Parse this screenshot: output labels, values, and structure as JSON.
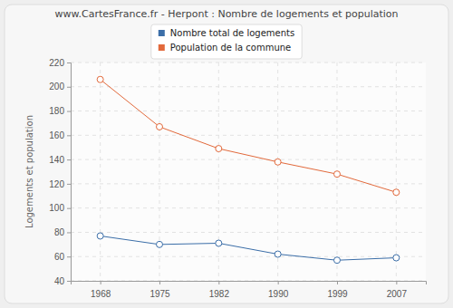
{
  "chart_data": {
    "type": "line",
    "title": "www.CartesFrance.fr - Herpont : Nombre de logements et population",
    "y_label": "Logements et population",
    "categories": [
      "1968",
      "1975",
      "1982",
      "1990",
      "1999",
      "2007"
    ],
    "series": [
      {
        "name": "Nombre total de logements",
        "color": "#3b6ea8",
        "marker": "circle",
        "line_style": "solid",
        "values": [
          77,
          70,
          71,
          62,
          57,
          59
        ]
      },
      {
        "name": "Population de la commune",
        "color": "#e2693b",
        "marker": "circle",
        "line_style": "solid",
        "values": [
          206,
          167,
          149,
          138,
          128,
          113
        ]
      }
    ],
    "ylim": [
      40,
      220
    ],
    "yticks": [
      40,
      60,
      80,
      100,
      120,
      140,
      160,
      180,
      200,
      220
    ],
    "grid": true,
    "legend": "top"
  }
}
